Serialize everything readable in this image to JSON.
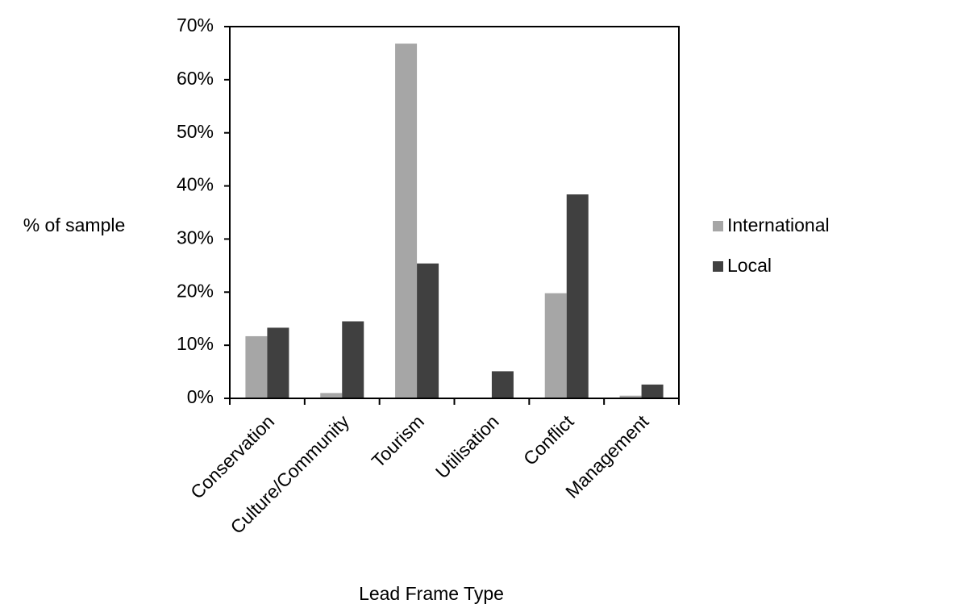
{
  "chart_data": {
    "type": "bar",
    "y_label": "% of sample",
    "x_label": "Lead Frame Type",
    "categories": [
      "Conservation",
      "Culture/Community",
      "Tourism",
      "Utilisation",
      "Conflict",
      "Management"
    ],
    "series": [
      {
        "name": "International",
        "color": "#a6a6a6",
        "values": [
          11.7,
          1.0,
          66.8,
          0,
          19.8,
          0.5
        ]
      },
      {
        "name": "Local",
        "color": "#404040",
        "values": [
          13.3,
          14.5,
          25.4,
          5.1,
          38.4,
          2.6
        ]
      }
    ],
    "ylim": [
      0,
      70
    ],
    "yticks": [
      {
        "value": 0,
        "label": "0%"
      },
      {
        "value": 10,
        "label": "10%"
      },
      {
        "value": 20,
        "label": "20%"
      },
      {
        "value": 30,
        "label": "30%"
      },
      {
        "value": 40,
        "label": "40%"
      },
      {
        "value": 50,
        "label": "50%"
      },
      {
        "value": 60,
        "label": "60%"
      },
      {
        "value": 70,
        "label": "70%"
      }
    ],
    "legend": "right"
  }
}
